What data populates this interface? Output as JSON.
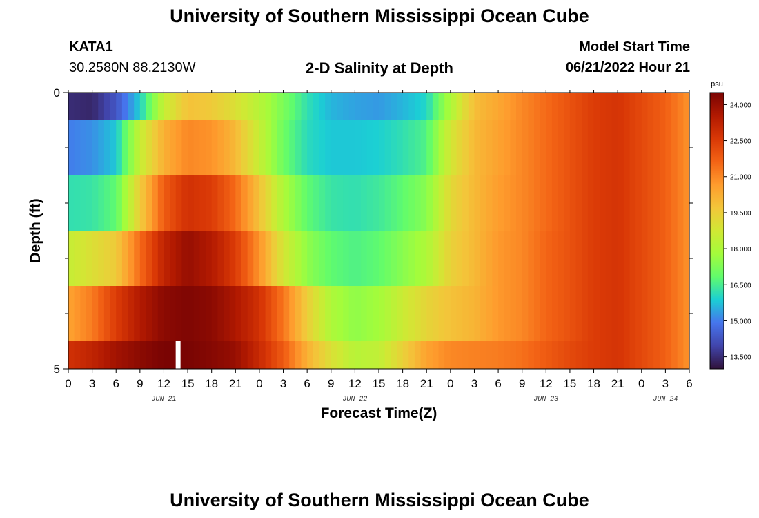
{
  "header": {
    "title": "University of Southern Mississippi Ocean Cube",
    "station": "KATA1",
    "coords": "30.2580N  88.2130W",
    "subtitle": "2-D Salinity at Depth",
    "model_label": "Model Start Time",
    "model_time": "06/21/2022 Hour 21"
  },
  "footer": {
    "title": "University of Southern Mississippi Ocean Cube"
  },
  "colors": {
    "scale": [
      "#30123b",
      "#4145ab",
      "#4675ed",
      "#1bcfd4",
      "#61fc6c",
      "#a4fc3b",
      "#d1e834",
      "#f3c63a",
      "#fe9b2d",
      "#f36315",
      "#d93806",
      "#b11901",
      "#7a0403"
    ],
    "marker": "#ffffff"
  },
  "chart_data": {
    "type": "heatmap",
    "xlabel": "Forecast Time(Z)",
    "ylabel": "Depth (ft)",
    "x_ticks": [
      "0",
      "3",
      "6",
      "9",
      "12",
      "15",
      "18",
      "21",
      "0",
      "3",
      "6",
      "9",
      "12",
      "15",
      "18",
      "21",
      "0",
      "3",
      "6",
      "9",
      "12",
      "15",
      "18",
      "21",
      "0",
      "3",
      "6"
    ],
    "x_hours": [
      0,
      78
    ],
    "date_labels": [
      {
        "label": "JUN 21",
        "hour": 12
      },
      {
        "label": "JUN 22",
        "hour": 36
      },
      {
        "label": "JUN 23",
        "hour": 60
      },
      {
        "label": "JUN 24",
        "hour": 75
      }
    ],
    "y_ticks": [
      "0",
      "5"
    ],
    "ylim": [
      0,
      5
    ],
    "depth_bins": [
      [
        0,
        0.5
      ],
      [
        0.5,
        1.5
      ],
      [
        1.5,
        2.5
      ],
      [
        2.5,
        3.5
      ],
      [
        3.5,
        4.5
      ],
      [
        4.5,
        5
      ]
    ],
    "colorbar": {
      "unit": "psu",
      "range": [
        13.0,
        24.5
      ],
      "ticks": [
        "24.000",
        "22.500",
        "21.000",
        "19.500",
        "18.000",
        "16.500",
        "15.000",
        "13.500"
      ],
      "tick_values": [
        24.0,
        22.5,
        21.0,
        19.5,
        18.0,
        16.5,
        15.0,
        13.5
      ]
    },
    "marker_hour": 13.75,
    "salinity": {
      "hours": [
        0,
        3,
        6,
        9,
        12,
        15,
        18,
        21,
        24,
        27,
        30,
        33,
        36,
        39,
        42,
        45,
        48,
        51,
        54,
        57,
        60,
        63,
        66,
        69,
        72,
        75,
        78
      ],
      "rows": [
        [
          13.5,
          13.4,
          14.3,
          15.9,
          18.5,
          19.8,
          19.6,
          19.0,
          18.2,
          17.2,
          16.2,
          15.6,
          15.4,
          15.3,
          15.6,
          16.0,
          18.0,
          19.9,
          20.4,
          21.0,
          21.5,
          22.0,
          22.5,
          22.7,
          22.2,
          21.7,
          20.8
        ],
        [
          15.0,
          15.2,
          15.8,
          18.5,
          20.2,
          21.0,
          20.8,
          20.0,
          18.5,
          17.0,
          16.1,
          15.8,
          15.8,
          15.9,
          16.2,
          16.6,
          18.8,
          20.0,
          20.5,
          21.0,
          21.5,
          22.0,
          22.5,
          22.7,
          22.2,
          21.7,
          20.8
        ],
        [
          16.2,
          16.3,
          16.8,
          19.5,
          21.8,
          22.8,
          22.5,
          21.5,
          19.8,
          18.0,
          16.8,
          16.3,
          16.2,
          16.4,
          16.8,
          17.4,
          19.2,
          20.0,
          20.6,
          21.0,
          21.5,
          22.0,
          22.5,
          22.7,
          22.2,
          21.7,
          20.8
        ],
        [
          18.5,
          19.0,
          19.6,
          21.5,
          23.2,
          24.0,
          23.5,
          22.5,
          20.8,
          18.8,
          17.5,
          16.8,
          16.6,
          16.8,
          17.4,
          18.0,
          19.4,
          20.0,
          20.7,
          21.0,
          21.6,
          22.0,
          22.5,
          22.7,
          22.2,
          21.7,
          20.8
        ],
        [
          20.5,
          21.2,
          22.5,
          23.5,
          24.2,
          24.4,
          24.2,
          23.6,
          22.8,
          21.3,
          19.5,
          18.0,
          17.5,
          17.8,
          18.6,
          19.3,
          19.8,
          20.1,
          20.7,
          21.0,
          21.6,
          22.0,
          22.5,
          22.7,
          22.2,
          21.7,
          20.8
        ],
        [
          22.8,
          23.2,
          23.8,
          24.2,
          24.5,
          24.5,
          24.3,
          24.0,
          23.0,
          21.8,
          20.2,
          19.0,
          18.2,
          18.4,
          19.4,
          20.5,
          21.0,
          21.1,
          21.2,
          21.4,
          21.8,
          22.2,
          22.5,
          22.7,
          22.2,
          21.7,
          20.8
        ]
      ]
    }
  }
}
